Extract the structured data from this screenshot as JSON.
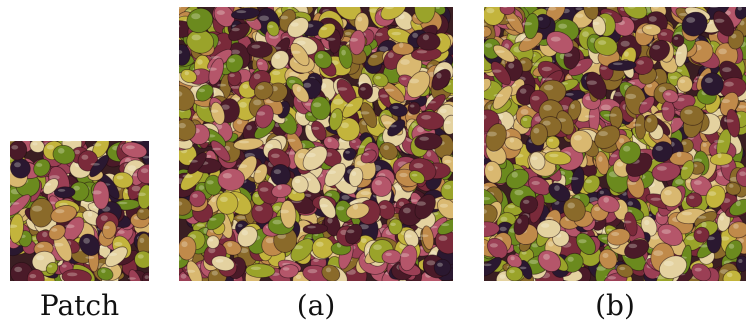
{
  "figure": {
    "panels": [
      {
        "id": "patch",
        "caption": "Patch",
        "image": "olive-texture-patch"
      },
      {
        "id": "a",
        "caption": "(a)",
        "image": "olive-texture-synthesis-a"
      },
      {
        "id": "b",
        "caption": "(b)",
        "image": "olive-texture-synthesis-b"
      }
    ],
    "palette": [
      "#6b8a1e",
      "#9aa32a",
      "#c3b43c",
      "#7a2a3a",
      "#9b3f55",
      "#b5566a",
      "#4a1a28",
      "#2a1830",
      "#d9b870",
      "#c08a4a",
      "#8a6a2a",
      "#e4d2a0"
    ]
  }
}
